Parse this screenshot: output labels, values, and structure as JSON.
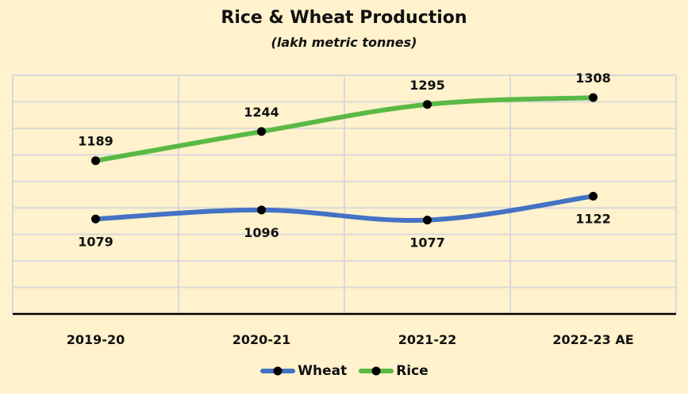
{
  "chart_data": {
    "type": "line",
    "title": "Rice & Wheat Production",
    "subtitle": "(lakh metric tonnes)",
    "xlabel": "",
    "ylabel": "",
    "categories": [
      "2019-20",
      "2020-21",
      "2021-22",
      "2022-23 AE"
    ],
    "series": [
      {
        "name": "Wheat",
        "color": "#4472c4",
        "values": [
          1079,
          1096,
          1077,
          1122
        ]
      },
      {
        "name": "Rice",
        "color": "#5ab946",
        "values": [
          1189,
          1244,
          1295,
          1308
        ]
      }
    ],
    "ylim": [
      900,
      1350
    ],
    "y_grid_step": 50,
    "grid": true,
    "y_axis_labels_shown": false,
    "legend_position": "bottom",
    "smoothed": true
  },
  "colors": {
    "background": "#fff2cc",
    "grid": "#d9d9d9",
    "marker": "#000000"
  }
}
